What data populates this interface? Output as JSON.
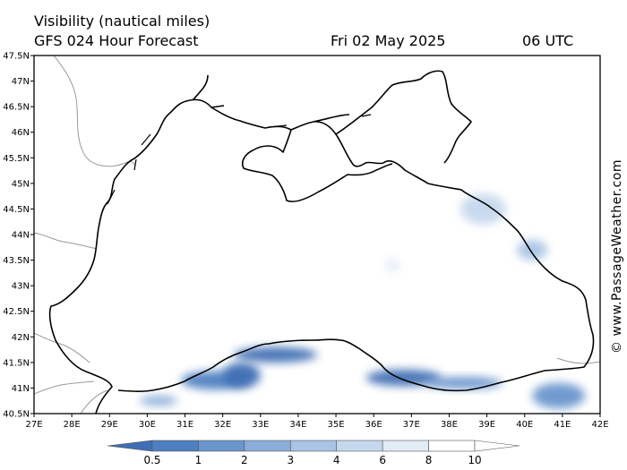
{
  "header": {
    "title": "Visibility (nautical miles)",
    "model": "GFS 024 Hour Forecast",
    "date": "Fri 02 May 2025",
    "time": "06 UTC"
  },
  "credit": "© www.PassageWeather.com",
  "map": {
    "lat_labels": [
      "47.5N",
      "47N",
      "46.5N",
      "46N",
      "45.5N",
      "45N",
      "44.5N",
      "44N",
      "43.5N",
      "43N",
      "42.5N",
      "42N",
      "41.5N",
      "41N",
      "40.5N"
    ],
    "lon_labels": [
      "27E",
      "28E",
      "29E",
      "30E",
      "31E",
      "32E",
      "33E",
      "34E",
      "35E",
      "36E",
      "37E",
      "38E",
      "39E",
      "40E",
      "41E",
      "42E"
    ],
    "lat_range": [
      40.5,
      47.5
    ],
    "lon_range": [
      27,
      42
    ],
    "coastline_color": "#000000",
    "border_color": "#999999",
    "land_color": "#ffffff"
  },
  "colorbar": {
    "ticks": [
      "0.5",
      "1",
      "2",
      "3",
      "4",
      "6",
      "8",
      "10"
    ],
    "colors": [
      "#3f6eb4",
      "#4d7fc0",
      "#6a95cd",
      "#8aaed9",
      "#a9c4e4",
      "#c6d8ee",
      "#e2ecf7",
      "#ffffff"
    ]
  },
  "visibility_patches": [
    {
      "lon": 31.8,
      "lat": 41.15,
      "rx": 0.9,
      "ry": 0.18,
      "level": 1
    },
    {
      "lon": 32.5,
      "lat": 41.25,
      "rx": 0.5,
      "ry": 0.25,
      "level": 0
    },
    {
      "lon": 33.4,
      "lat": 41.65,
      "rx": 1.1,
      "ry": 0.15,
      "level": 0
    },
    {
      "lon": 36.8,
      "lat": 41.2,
      "rx": 1.0,
      "ry": 0.16,
      "level": 0
    },
    {
      "lon": 38.4,
      "lat": 41.1,
      "rx": 1.0,
      "ry": 0.12,
      "level": 2
    },
    {
      "lon": 40.9,
      "lat": 40.85,
      "rx": 0.7,
      "ry": 0.25,
      "level": 2
    },
    {
      "lon": 30.3,
      "lat": 40.75,
      "rx": 0.5,
      "ry": 0.1,
      "level": 3
    },
    {
      "lon": 38.9,
      "lat": 44.5,
      "rx": 0.6,
      "ry": 0.3,
      "level": 5
    },
    {
      "lon": 40.2,
      "lat": 43.7,
      "rx": 0.4,
      "ry": 0.2,
      "level": 4
    },
    {
      "lon": 36.5,
      "lat": 43.4,
      "rx": 0.2,
      "ry": 0.12,
      "level": 6
    }
  ]
}
